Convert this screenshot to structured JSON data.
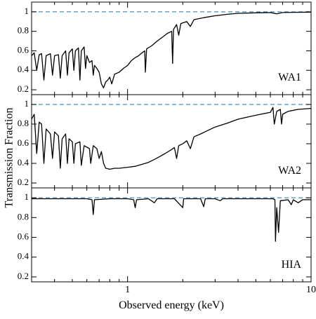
{
  "chart_data": [
    {
      "type": "line",
      "annotation": "WA1",
      "color": "#000000",
      "hline": 1,
      "hline_color": "#4a8ec2",
      "ylim": [
        0.15,
        1.1
      ],
      "yticks": [
        0.2,
        0.4,
        0.6,
        0.8,
        1
      ],
      "x": [
        0.3,
        0.31,
        0.32,
        0.33,
        0.34,
        0.35,
        0.36,
        0.38,
        0.39,
        0.4,
        0.42,
        0.43,
        0.44,
        0.46,
        0.47,
        0.48,
        0.5,
        0.51,
        0.52,
        0.54,
        0.55,
        0.56,
        0.58,
        0.59,
        0.6,
        0.62,
        0.64,
        0.65,
        0.66,
        0.68,
        0.7,
        0.72,
        0.74,
        0.76,
        0.78,
        0.8,
        0.82,
        0.85,
        0.9,
        0.95,
        1.0,
        1.05,
        1.1,
        1.15,
        1.2,
        1.24,
        1.25,
        1.27,
        1.35,
        1.45,
        1.55,
        1.65,
        1.74,
        1.76,
        1.78,
        1.85,
        1.9,
        1.95,
        2.1,
        2.2,
        2.3,
        2.6,
        3,
        3.5,
        4,
        5,
        6,
        6.5,
        7,
        8,
        10
      ],
      "values": [
        0.55,
        0.58,
        0.4,
        0.56,
        0.57,
        0.3,
        0.55,
        0.57,
        0.35,
        0.55,
        0.56,
        0.32,
        0.55,
        0.6,
        0.35,
        0.58,
        0.62,
        0.4,
        0.6,
        0.63,
        0.3,
        0.6,
        0.64,
        0.42,
        0.55,
        0.48,
        0.5,
        0.35,
        0.45,
        0.42,
        0.38,
        0.26,
        0.22,
        0.28,
        0.3,
        0.33,
        0.26,
        0.36,
        0.38,
        0.42,
        0.45,
        0.5,
        0.53,
        0.55,
        0.58,
        0.6,
        0.38,
        0.62,
        0.65,
        0.7,
        0.74,
        0.78,
        0.8,
        0.47,
        0.82,
        0.87,
        0.76,
        0.88,
        0.9,
        0.85,
        0.92,
        0.94,
        0.96,
        0.975,
        0.985,
        0.99,
        0.993,
        0.98,
        0.993,
        0.995,
        0.997
      ]
    },
    {
      "type": "line",
      "annotation": "WA2",
      "color": "#000000",
      "hline": 1,
      "hline_color": "#4a8ec2",
      "y_label": "Transmission Fraction",
      "ylim": [
        0.15,
        1.1
      ],
      "yticks": [
        0.2,
        0.4,
        0.6,
        0.8,
        1
      ],
      "x": [
        0.3,
        0.31,
        0.32,
        0.33,
        0.34,
        0.35,
        0.36,
        0.38,
        0.39,
        0.4,
        0.42,
        0.43,
        0.44,
        0.46,
        0.47,
        0.48,
        0.5,
        0.51,
        0.52,
        0.55,
        0.56,
        0.58,
        0.62,
        0.63,
        0.65,
        0.68,
        0.7,
        0.72,
        0.74,
        0.76,
        0.8,
        0.85,
        0.9,
        1.0,
        1.1,
        1.2,
        1.3,
        1.4,
        1.5,
        1.6,
        1.7,
        1.8,
        1.85,
        1.9,
        2.0,
        2.1,
        2.2,
        2.3,
        2.5,
        2.7,
        3.0,
        3.5,
        4.0,
        5.0,
        6.0,
        6.2,
        6.3,
        6.5,
        6.8,
        6.9,
        7.0,
        7.5,
        8.5,
        10
      ],
      "values": [
        0.85,
        0.9,
        0.5,
        0.82,
        0.8,
        0.4,
        0.75,
        0.7,
        0.45,
        0.72,
        0.68,
        0.35,
        0.65,
        0.7,
        0.4,
        0.65,
        0.62,
        0.4,
        0.6,
        0.62,
        0.38,
        0.58,
        0.55,
        0.4,
        0.58,
        0.55,
        0.45,
        0.52,
        0.4,
        0.35,
        0.34,
        0.35,
        0.35,
        0.36,
        0.37,
        0.39,
        0.41,
        0.44,
        0.47,
        0.5,
        0.53,
        0.56,
        0.45,
        0.58,
        0.6,
        0.63,
        0.55,
        0.67,
        0.7,
        0.73,
        0.77,
        0.81,
        0.85,
        0.89,
        0.92,
        0.97,
        0.8,
        0.93,
        0.95,
        0.8,
        0.9,
        0.93,
        0.95,
        0.96
      ]
    },
    {
      "type": "line",
      "annotation": "HIA",
      "color": "#000000",
      "hline": 1,
      "hline_color": "#4a8ec2",
      "x_label": "Observed energy (keV)",
      "log_x": true,
      "xlim": [
        0.3,
        10
      ],
      "xticks": [
        1,
        10
      ],
      "xminorticks": [
        0.3,
        0.4,
        0.5,
        0.6,
        0.7,
        0.8,
        0.9,
        2,
        3,
        4,
        5,
        6,
        7,
        8,
        9
      ],
      "ylim": [
        0.15,
        1.1
      ],
      "yticks": [
        0.2,
        0.4,
        0.6,
        0.8,
        1
      ],
      "x": [
        0.3,
        0.4,
        0.5,
        0.6,
        0.64,
        0.65,
        0.66,
        0.8,
        0.9,
        1.0,
        1.08,
        1.1,
        1.12,
        1.3,
        1.4,
        1.45,
        1.8,
        2.0,
        2.02,
        2.5,
        2.6,
        2.65,
        3.0,
        3.2,
        3.3,
        5,
        6.2,
        6.35,
        6.4,
        6.5,
        6.65,
        6.8,
        7.5,
        7.8,
        8,
        8.5,
        9,
        10
      ],
      "values": [
        0.99,
        0.99,
        0.99,
        0.99,
        0.98,
        0.83,
        0.98,
        0.99,
        0.99,
        0.99,
        0.98,
        0.9,
        0.98,
        0.99,
        0.95,
        0.99,
        0.99,
        0.9,
        0.99,
        0.99,
        0.91,
        0.99,
        0.99,
        0.97,
        0.99,
        0.99,
        0.99,
        0.98,
        0.56,
        0.9,
        0.65,
        0.97,
        0.98,
        0.93,
        0.98,
        0.95,
        0.98,
        0.98
      ]
    }
  ]
}
